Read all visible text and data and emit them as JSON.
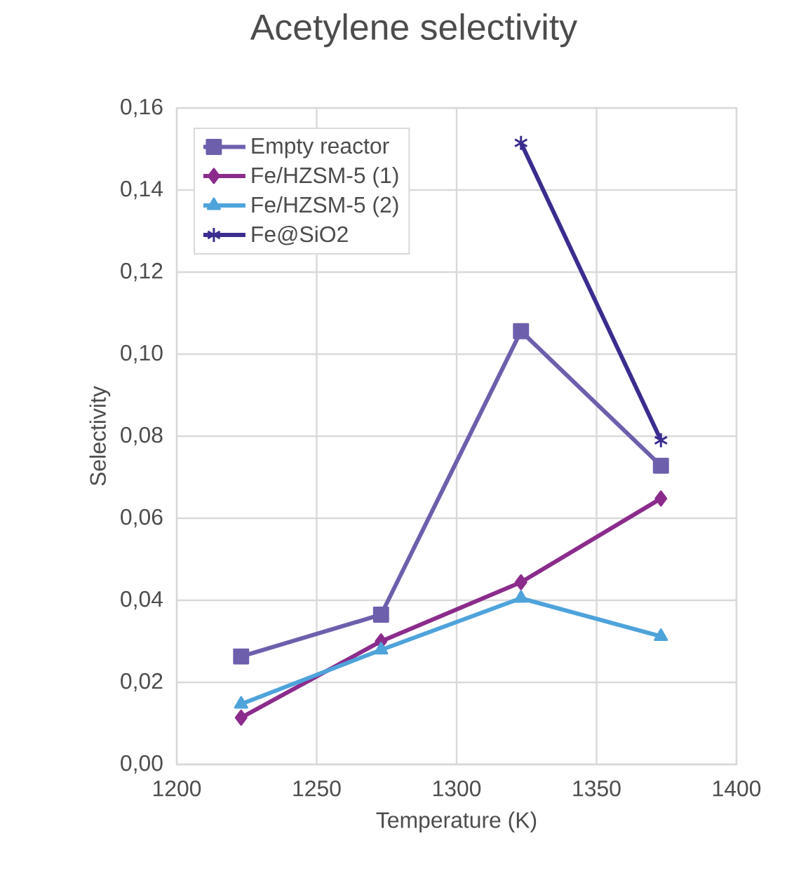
{
  "chart_data": {
    "type": "line",
    "title": "Acetylene selectivity",
    "xlabel": "Temperature (K)",
    "ylabel": "Selectivity",
    "x": [
      1223,
      1273,
      1323,
      1373
    ],
    "series": [
      {
        "name": "Empty reactor",
        "color": "#6e5fad",
        "marker": "square",
        "values": [
          0.0263,
          0.0365,
          0.1056,
          0.0728
        ]
      },
      {
        "name": "Fe/HZSM-5 (1)",
        "color": "#8b2c8c",
        "marker": "diamond",
        "values": [
          0.0114,
          0.03,
          0.0444,
          0.0648
        ]
      },
      {
        "name": "Fe/HZSM-5 (2)",
        "color": "#4ea3db",
        "marker": "triangle",
        "values": [
          0.0147,
          0.0279,
          0.0405,
          0.0312
        ]
      },
      {
        "name": "Fe@SiO2",
        "color": "#3a2d8f",
        "marker": "cross",
        "values": [
          null,
          null,
          0.1515,
          0.079
        ]
      }
    ],
    "xlim": [
      1200,
      1400
    ],
    "xticks": [
      1200,
      1250,
      1300,
      1350,
      1400
    ],
    "ylim": [
      0,
      0.16
    ],
    "yticks": [
      {
        "value": 0,
        "label": "0,00"
      },
      {
        "value": 0.02,
        "label": "0,02"
      },
      {
        "value": 0.04,
        "label": "0,04"
      },
      {
        "value": 0.06,
        "label": "0,06"
      },
      {
        "value": 0.08,
        "label": "0,08"
      },
      {
        "value": 0.1,
        "label": "0,10"
      },
      {
        "value": 0.12,
        "label": "0,12"
      },
      {
        "value": 0.14,
        "label": "0,14"
      },
      {
        "value": 0.16,
        "label": "0,16"
      }
    ],
    "grid": true,
    "legend": "top left",
    "line_style": "solid"
  }
}
